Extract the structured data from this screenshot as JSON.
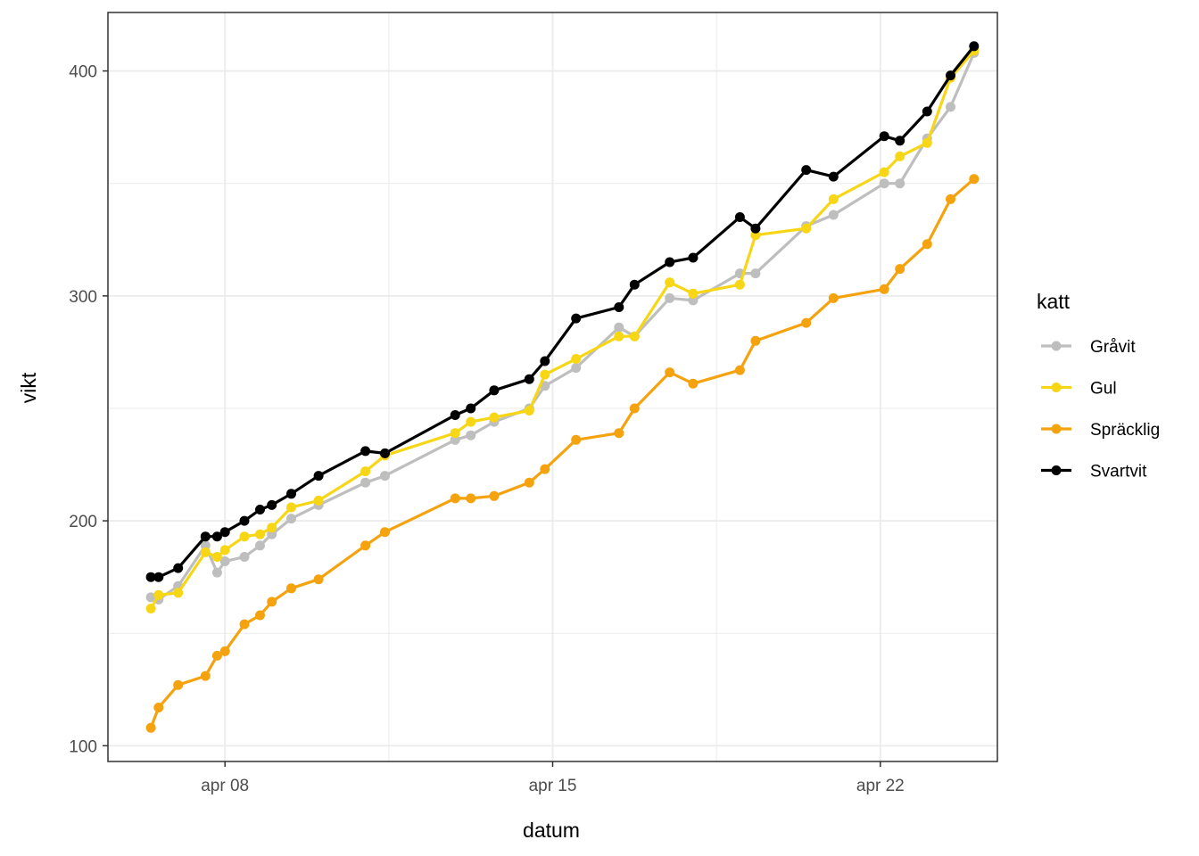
{
  "chart_data": {
    "type": "line",
    "xlabel": "datum",
    "ylabel": "vikt",
    "x_ticks": [
      {
        "date": "2020-04-08",
        "label": "apr 08"
      },
      {
        "date": "2020-04-15",
        "label": "apr 15"
      },
      {
        "date": "2020-04-22",
        "label": "apr 22"
      }
    ],
    "y_ticks": [
      100,
      200,
      300,
      400
    ],
    "ylim": [
      93,
      426
    ],
    "xlim": [
      "2020-04-05T12:00",
      "2020-04-24T12:00"
    ],
    "grid": true,
    "legend": {
      "title": "katt",
      "position": "right"
    },
    "series": [
      {
        "name": "Gråvit",
        "color": "#bebebe",
        "points": [
          [
            "2020-04-06T10:00",
            166
          ],
          [
            "2020-04-06T14:00",
            165
          ],
          [
            "2020-04-07T00:00",
            171
          ],
          [
            "2020-04-07T14:00",
            189
          ],
          [
            "2020-04-07T20:00",
            177
          ],
          [
            "2020-04-08T00:00",
            182
          ],
          [
            "2020-04-08T10:00",
            184
          ],
          [
            "2020-04-08T18:00",
            189
          ],
          [
            "2020-04-09T00:00",
            194
          ],
          [
            "2020-04-09T10:00",
            201
          ],
          [
            "2020-04-10T00:00",
            207
          ],
          [
            "2020-04-11T00:00",
            217
          ],
          [
            "2020-04-11T10:00",
            220
          ],
          [
            "2020-04-12T22:00",
            236
          ],
          [
            "2020-04-13T06:00",
            238
          ],
          [
            "2020-04-13T18:00",
            244
          ],
          [
            "2020-04-14T12:00",
            250
          ],
          [
            "2020-04-14T20:00",
            260
          ],
          [
            "2020-04-15T12:00",
            268
          ],
          [
            "2020-04-16T10:00",
            286
          ],
          [
            "2020-04-16T18:00",
            282
          ],
          [
            "2020-04-17T12:00",
            299
          ],
          [
            "2020-04-18T00:00",
            298
          ],
          [
            "2020-04-19T00:00",
            310
          ],
          [
            "2020-04-19T08:00",
            310
          ],
          [
            "2020-04-20T10:00",
            331
          ],
          [
            "2020-04-21T00:00",
            336
          ],
          [
            "2020-04-22T02:00",
            350
          ],
          [
            "2020-04-22T10:00",
            350
          ],
          [
            "2020-04-23T00:00",
            370
          ],
          [
            "2020-04-23T12:00",
            384
          ],
          [
            "2020-04-24T00:00",
            408
          ]
        ]
      },
      {
        "name": "Gul",
        "color": "#f7d616",
        "points": [
          [
            "2020-04-06T10:00",
            161
          ],
          [
            "2020-04-06T14:00",
            167
          ],
          [
            "2020-04-07T00:00",
            168
          ],
          [
            "2020-04-07T14:00",
            186
          ],
          [
            "2020-04-07T20:00",
            184
          ],
          [
            "2020-04-08T00:00",
            187
          ],
          [
            "2020-04-08T10:00",
            193
          ],
          [
            "2020-04-08T18:00",
            194
          ],
          [
            "2020-04-09T00:00",
            197
          ],
          [
            "2020-04-09T10:00",
            206
          ],
          [
            "2020-04-10T00:00",
            209
          ],
          [
            "2020-04-11T00:00",
            222
          ],
          [
            "2020-04-11T10:00",
            229
          ],
          [
            "2020-04-12T22:00",
            239
          ],
          [
            "2020-04-13T06:00",
            244
          ],
          [
            "2020-04-13T18:00",
            246
          ],
          [
            "2020-04-14T12:00",
            249
          ],
          [
            "2020-04-14T20:00",
            265
          ],
          [
            "2020-04-15T12:00",
            272
          ],
          [
            "2020-04-16T10:00",
            282
          ],
          [
            "2020-04-16T18:00",
            282
          ],
          [
            "2020-04-17T12:00",
            306
          ],
          [
            "2020-04-18T00:00",
            301
          ],
          [
            "2020-04-19T00:00",
            305
          ],
          [
            "2020-04-19T08:00",
            327
          ],
          [
            "2020-04-20T10:00",
            330
          ],
          [
            "2020-04-21T00:00",
            343
          ],
          [
            "2020-04-22T02:00",
            355
          ],
          [
            "2020-04-22T10:00",
            362
          ],
          [
            "2020-04-23T00:00",
            368
          ],
          [
            "2020-04-23T12:00",
            397
          ],
          [
            "2020-04-24T00:00",
            409
          ]
        ]
      },
      {
        "name": "Spräcklig",
        "color": "#f5a20f",
        "points": [
          [
            "2020-04-06T10:00",
            108
          ],
          [
            "2020-04-06T14:00",
            117
          ],
          [
            "2020-04-07T00:00",
            127
          ],
          [
            "2020-04-07T14:00",
            131
          ],
          [
            "2020-04-07T20:00",
            140
          ],
          [
            "2020-04-08T00:00",
            142
          ],
          [
            "2020-04-08T10:00",
            154
          ],
          [
            "2020-04-08T18:00",
            158
          ],
          [
            "2020-04-09T00:00",
            164
          ],
          [
            "2020-04-09T10:00",
            170
          ],
          [
            "2020-04-10T00:00",
            174
          ],
          [
            "2020-04-11T00:00",
            189
          ],
          [
            "2020-04-11T10:00",
            195
          ],
          [
            "2020-04-12T22:00",
            210
          ],
          [
            "2020-04-13T06:00",
            210
          ],
          [
            "2020-04-13T18:00",
            211
          ],
          [
            "2020-04-14T12:00",
            217
          ],
          [
            "2020-04-14T20:00",
            223
          ],
          [
            "2020-04-15T12:00",
            236
          ],
          [
            "2020-04-16T10:00",
            239
          ],
          [
            "2020-04-16T18:00",
            250
          ],
          [
            "2020-04-17T12:00",
            266
          ],
          [
            "2020-04-18T00:00",
            261
          ],
          [
            "2020-04-19T00:00",
            267
          ],
          [
            "2020-04-19T08:00",
            280
          ],
          [
            "2020-04-20T10:00",
            288
          ],
          [
            "2020-04-21T00:00",
            299
          ],
          [
            "2020-04-22T02:00",
            303
          ],
          [
            "2020-04-22T10:00",
            312
          ],
          [
            "2020-04-23T00:00",
            323
          ],
          [
            "2020-04-23T12:00",
            343
          ],
          [
            "2020-04-24T00:00",
            352
          ]
        ]
      },
      {
        "name": "Svartvit",
        "color": "#000000",
        "points": [
          [
            "2020-04-06T10:00",
            175
          ],
          [
            "2020-04-06T14:00",
            175
          ],
          [
            "2020-04-07T00:00",
            179
          ],
          [
            "2020-04-07T14:00",
            193
          ],
          [
            "2020-04-07T20:00",
            193
          ],
          [
            "2020-04-08T00:00",
            195
          ],
          [
            "2020-04-08T10:00",
            200
          ],
          [
            "2020-04-08T18:00",
            205
          ],
          [
            "2020-04-09T00:00",
            207
          ],
          [
            "2020-04-09T10:00",
            212
          ],
          [
            "2020-04-10T00:00",
            220
          ],
          [
            "2020-04-11T00:00",
            231
          ],
          [
            "2020-04-11T10:00",
            230
          ],
          [
            "2020-04-12T22:00",
            247
          ],
          [
            "2020-04-13T06:00",
            250
          ],
          [
            "2020-04-13T18:00",
            258
          ],
          [
            "2020-04-14T12:00",
            263
          ],
          [
            "2020-04-14T20:00",
            271
          ],
          [
            "2020-04-15T12:00",
            290
          ],
          [
            "2020-04-16T10:00",
            295
          ],
          [
            "2020-04-16T18:00",
            305
          ],
          [
            "2020-04-17T12:00",
            315
          ],
          [
            "2020-04-18T00:00",
            317
          ],
          [
            "2020-04-19T00:00",
            335
          ],
          [
            "2020-04-19T08:00",
            330
          ],
          [
            "2020-04-20T10:00",
            356
          ],
          [
            "2020-04-21T00:00",
            353
          ],
          [
            "2020-04-22T02:00",
            371
          ],
          [
            "2020-04-22T10:00",
            369
          ],
          [
            "2020-04-23T00:00",
            382
          ],
          [
            "2020-04-23T12:00",
            398
          ],
          [
            "2020-04-24T00:00",
            411
          ]
        ]
      }
    ]
  }
}
